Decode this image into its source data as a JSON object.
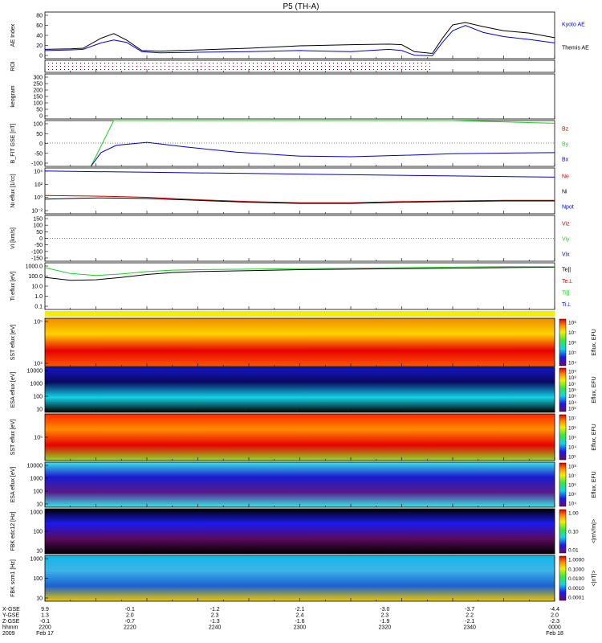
{
  "title": "P5 (TH-A)",
  "footer": {
    "row_labels": [
      "X-GSE",
      "Y-GSE",
      "Z-GSE",
      "hhmm",
      "2009"
    ],
    "date_start": "Feb 17",
    "date_end": "Feb 18",
    "columns": [
      {
        "x": "9.9",
        "y": "1.3",
        "z": "-0.1",
        "t": "2200"
      },
      {
        "x": "-0.1",
        "y": "2.0",
        "z": "-0.7",
        "t": "2220"
      },
      {
        "x": "-1.2",
        "y": "2.3",
        "z": "-1.3",
        "t": "2240"
      },
      {
        "x": "-2.1",
        "y": "2.4",
        "z": "-1.6",
        "t": "2300"
      },
      {
        "x": "-3.0",
        "y": "2.3",
        "z": "-1.9",
        "t": "2320"
      },
      {
        "x": "-3.7",
        "y": "2.2",
        "z": "-2.1",
        "t": "2340"
      },
      {
        "x": "-4.4",
        "y": "2.0",
        "z": "-2.3",
        "t": "0000"
      }
    ]
  },
  "colors": {
    "red": "#cc0000",
    "green": "#22cc22",
    "blue": "#0000cc",
    "black": "#000000"
  },
  "chart_data": [
    {
      "type": "line",
      "panel": "ae",
      "ylabel": "AE Index",
      "yticks": [
        "80",
        "60",
        "40",
        "20",
        "0"
      ],
      "ylim": [
        0,
        80
      ],
      "xlim": [
        2200,
        2400
      ],
      "series": [
        {
          "name": "Kyoto AE",
          "color": "#0000cc",
          "x": [
            2200,
            2210,
            2215,
            2222,
            2227,
            2232,
            2238,
            2245,
            2260,
            2280,
            2300,
            2320,
            2335,
            2340,
            2345,
            2352,
            2356,
            2360,
            2365,
            2372,
            2380,
            2390,
            2400
          ],
          "values": [
            14,
            15,
            16,
            27,
            32,
            28,
            12,
            10,
            11,
            12,
            14,
            12,
            16,
            14,
            6,
            5,
            28,
            48,
            57,
            45,
            38,
            33,
            27
          ]
        },
        {
          "name": "Themis AE",
          "color": "#000000",
          "x": [
            2200,
            2210,
            2215,
            2222,
            2227,
            2232,
            2238,
            2245,
            2260,
            2280,
            2300,
            2320,
            2335,
            2340,
            2345,
            2352,
            2356,
            2360,
            2365,
            2372,
            2380,
            2390,
            2400
          ],
          "values": [
            16,
            17,
            18,
            35,
            43,
            32,
            14,
            13,
            15,
            18,
            22,
            24,
            25,
            24,
            12,
            9,
            35,
            58,
            62,
            55,
            48,
            44,
            36
          ]
        }
      ]
    },
    {
      "type": "scatter",
      "panel": "roi",
      "ylabel": "ROI",
      "series": [
        {
          "name": "",
          "rows": 3
        }
      ]
    },
    {
      "type": "line",
      "panel": "keogram",
      "ylabel": "keogram",
      "yticks": [
        "300",
        "250",
        "200",
        "150",
        "100",
        "50",
        "0"
      ],
      "ylim": [
        0,
        300
      ],
      "series": []
    },
    {
      "type": "line",
      "panel": "bfit",
      "ylabel": "B_FIT GSE [nT]",
      "yticks": [
        "100",
        "50",
        "0",
        "-50",
        "-100"
      ],
      "ylim": [
        -100,
        100
      ],
      "series": [
        {
          "name": "Bz",
          "color": "#cc0000",
          "x": [],
          "values": []
        },
        {
          "name": "By",
          "color": "#22cc22",
          "x": [
            2218,
            2227,
            2360,
            2400
          ],
          "values": [
            -100,
            100,
            100,
            88
          ]
        },
        {
          "name": "Bx",
          "color": "#0000cc",
          "x": [
            2218,
            2222,
            2228,
            2240,
            2255,
            2275,
            2300,
            2320,
            2340,
            2360,
            2380,
            2400
          ],
          "values": [
            -100,
            -40,
            -8,
            5,
            -15,
            -38,
            -55,
            -58,
            -52,
            -45,
            -42,
            -40
          ]
        }
      ]
    },
    {
      "type": "line",
      "panel": "density",
      "ylabel": "Ni eflux [1/cc]",
      "yticks": [
        "10⁴",
        "10²",
        "10⁰",
        "10⁻²"
      ],
      "log": true,
      "ylim": [
        -3,
        4.5
      ],
      "series": [
        {
          "name": "Ne",
          "color": "#cc0000",
          "x": [
            2200,
            2220,
            2240,
            2260,
            2280,
            2300,
            2320,
            2340,
            2360,
            2380,
            2400
          ],
          "values": [
            0.0,
            -0.1,
            -0.3,
            -0.7,
            -1.0,
            -1.2,
            -1.2,
            -1.0,
            -0.9,
            -0.8,
            -0.8
          ]
        },
        {
          "name": "Ni",
          "color": "#000000",
          "x": [
            2200,
            2220,
            2240,
            2260,
            2280,
            2300,
            2320,
            2340,
            2360,
            2380,
            2400
          ],
          "values": [
            -0.6,
            -0.4,
            -0.5,
            -0.8,
            -1.1,
            -1.3,
            -1.3,
            -1.1,
            -1.0,
            -0.9,
            -0.9
          ]
        },
        {
          "name": "Npot",
          "color": "#0000cc",
          "x": [
            2200,
            2220,
            2240,
            2260,
            2280,
            2300,
            2320,
            2340,
            2360,
            2380,
            2400
          ],
          "values": [
            4.0,
            3.9,
            3.8,
            3.7,
            3.6,
            3.5,
            3.4,
            3.3,
            3.2,
            3.1,
            3.0
          ]
        }
      ]
    },
    {
      "type": "line",
      "panel": "velocity",
      "ylabel": "Vi [km/s]",
      "yticks": [
        "150",
        "100",
        "50",
        "0",
        "-50",
        "-100",
        "-150"
      ],
      "ylim": [
        -175,
        175
      ],
      "series": [
        {
          "name": "Viz",
          "color": "#cc0000",
          "x": [],
          "values": []
        },
        {
          "name": "Viy",
          "color": "#22cc22",
          "x": [],
          "values": []
        },
        {
          "name": "Vix",
          "color": "#0000cc",
          "x": [],
          "values": []
        }
      ]
    },
    {
      "type": "line",
      "panel": "temperature",
      "ylabel": "Ti eflux [eV]",
      "yticks": [
        "1000.0",
        "100.0",
        "10.0",
        "1.0",
        "0.1"
      ],
      "log": true,
      "ylim": [
        -1.3,
        3.5
      ],
      "series": [
        {
          "name": "Te||",
          "color": "#000000",
          "x": [
            2200,
            2210,
            2220,
            2230,
            2240,
            2250,
            2260,
            2280,
            2300,
            2320,
            2340,
            2360,
            2380,
            2400
          ],
          "values": [
            2.0,
            1.7,
            1.75,
            2.0,
            2.3,
            2.5,
            2.6,
            2.7,
            2.8,
            2.85,
            2.9,
            2.95,
            3.0,
            3.05
          ]
        },
        {
          "name": "Te⊥",
          "color": "#cc0000",
          "x": [],
          "values": []
        },
        {
          "name": "Ti||",
          "color": "#22cc22",
          "x": [
            2200,
            2210,
            2220,
            2230,
            2240,
            2250,
            2260,
            2280,
            2300,
            2320,
            2340,
            2360,
            2380,
            2400
          ],
          "values": [
            3.0,
            2.4,
            2.2,
            2.35,
            2.6,
            2.75,
            2.8,
            2.85,
            2.9,
            2.95,
            3.0,
            3.05,
            3.1,
            3.1
          ]
        },
        {
          "name": "Ti⊥",
          "color": "#0000cc",
          "x": [],
          "values": []
        }
      ]
    },
    {
      "type": "heatmap",
      "panel": "sst_e",
      "ylabel": "SST eflux [eV]",
      "yticks": [
        "10⁵",
        "10⁴"
      ],
      "colorbar_label": "Eflux, EFU",
      "colorbar_ticks": [
        "10⁸",
        "10⁷",
        "10⁶",
        "10⁵",
        "10⁴"
      ]
    },
    {
      "type": "heatmap",
      "panel": "esa_e",
      "ylabel": "ESA eflux [eV]",
      "yticks": [
        "10000",
        "1000",
        "100",
        "10"
      ],
      "colorbar_label": "Eflux, EFU",
      "colorbar_ticks": [
        "10⁹",
        "10⁸",
        "10⁷",
        "10⁶",
        "10⁵",
        "10⁴",
        "10³"
      ]
    },
    {
      "type": "heatmap",
      "panel": "sst_i",
      "ylabel": "SST eflux [eV]",
      "yticks": [
        "10⁵"
      ],
      "colorbar_label": "Eflux, EFU",
      "colorbar_ticks": [
        "10⁷",
        "10⁶",
        "10⁵",
        "10⁴",
        "10³"
      ]
    },
    {
      "type": "heatmap",
      "panel": "esa_i",
      "ylabel": "ESA eflux [eV]",
      "yticks": [
        "10000",
        "1000",
        "100",
        "10"
      ],
      "colorbar_label": "Eflux, EFU",
      "colorbar_ticks": [
        "10⁸",
        "10⁷",
        "10⁶",
        "10⁵",
        "10⁴"
      ]
    },
    {
      "type": "heatmap",
      "panel": "fbk_e",
      "ylabel": "FBK edc12 [Hz]",
      "yticks": [
        "1000",
        "100",
        "10"
      ],
      "colorbar_label": "<|mV/m|>",
      "colorbar_ticks": [
        "1.00",
        "0.10",
        "0.01"
      ]
    },
    {
      "type": "heatmap",
      "panel": "fbk_b",
      "ylabel": "FBK scm1 [Hz]",
      "yticks": [
        "1000",
        "100",
        "10"
      ],
      "colorbar_label": "<|nT|>",
      "colorbar_ticks": [
        "1.0000",
        "0.1000",
        "0.0100",
        "0.0010",
        "0.0001"
      ]
    }
  ]
}
